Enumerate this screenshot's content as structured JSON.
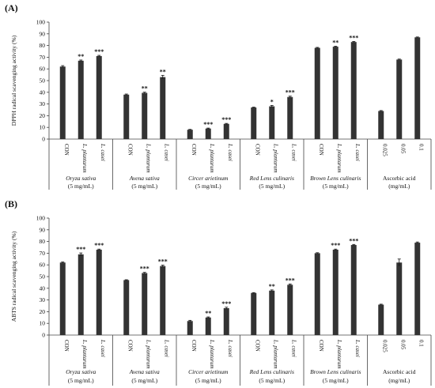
{
  "chart_data": [
    {
      "type": "bar",
      "panel": "(A)",
      "ylabel": "DPPH radical scavenging activity (%)",
      "ylim": [
        0,
        100
      ],
      "yticks": [
        0,
        10,
        20,
        30,
        40,
        50,
        60,
        70,
        80,
        90,
        100
      ],
      "groups": [
        {
          "name": "Oryza sativa",
          "sub": "(5 mg/mL)",
          "italic": true,
          "bars": [
            {
              "label": "CON",
              "italic": false,
              "value": 62,
              "err": 0.8,
              "sig": ""
            },
            {
              "label": "L. plantarum",
              "italic": true,
              "value": 67,
              "err": 0.6,
              "sig": "**"
            },
            {
              "label": "L. casei",
              "italic": true,
              "value": 71,
              "err": 0.6,
              "sig": "***"
            }
          ]
        },
        {
          "name": "Avena sativa",
          "sub": "(5 mg/mL)",
          "italic": true,
          "bars": [
            {
              "label": "CON",
              "italic": false,
              "value": 38,
              "err": 0.5,
              "sig": ""
            },
            {
              "label": "L. plantarum",
              "italic": true,
              "value": 39.5,
              "err": 0.6,
              "sig": "**"
            },
            {
              "label": "L. casei",
              "italic": true,
              "value": 53,
              "err": 1.5,
              "sig": "**"
            }
          ]
        },
        {
          "name": "Circer arietinum",
          "sub": "(5 mg/mL)",
          "italic": true,
          "bars": [
            {
              "label": "CON",
              "italic": false,
              "value": 8,
              "err": 0.3,
              "sig": ""
            },
            {
              "label": "L. plantarum",
              "italic": true,
              "value": 9,
              "err": 0.4,
              "sig": "***"
            },
            {
              "label": "L. casei",
              "italic": true,
              "value": 13,
              "err": 0.4,
              "sig": "***"
            }
          ]
        },
        {
          "name": "Red Lens culinaris",
          "sub": "(5 mg/mL)",
          "italic": true,
          "bars": [
            {
              "label": "CON",
              "italic": false,
              "value": 27,
              "err": 0.3,
              "sig": ""
            },
            {
              "label": "L. plantarum",
              "italic": true,
              "value": 28,
              "err": 0.8,
              "sig": "*"
            },
            {
              "label": "L. casei",
              "italic": true,
              "value": 36,
              "err": 0.7,
              "sig": "***"
            }
          ]
        },
        {
          "name": "Brown Lens culinaris",
          "sub": "(5 mg/mL)",
          "italic": true,
          "bars": [
            {
              "label": "CON",
              "italic": false,
              "value": 78,
              "err": 0.4,
              "sig": ""
            },
            {
              "label": "L. plantarum",
              "italic": true,
              "value": 79,
              "err": 0.4,
              "sig": "**"
            },
            {
              "label": "L. casei",
              "italic": true,
              "value": 83,
              "err": 0.5,
              "sig": "***"
            }
          ]
        },
        {
          "name": "Ascorbic acid",
          "sub": "(mg/mL)",
          "italic": false,
          "bars": [
            {
              "label": "0.025",
              "italic": false,
              "value": 24,
              "err": 0.4,
              "sig": ""
            },
            {
              "label": "0.05",
              "italic": false,
              "value": 68,
              "err": 0.4,
              "sig": ""
            },
            {
              "label": "0.1",
              "italic": false,
              "value": 87,
              "err": 0.3,
              "sig": ""
            }
          ]
        }
      ]
    },
    {
      "type": "bar",
      "panel": "(B)",
      "ylabel": "ABTS radical scavenging activity (%)",
      "ylim": [
        0,
        100
      ],
      "yticks": [
        0,
        10,
        20,
        30,
        40,
        50,
        60,
        70,
        80,
        90,
        100
      ],
      "groups": [
        {
          "name": "Oryza sativa",
          "sub": "(5 mg/mL)",
          "italic": true,
          "bars": [
            {
              "label": "CON",
              "italic": false,
              "value": 62,
              "err": 0.5,
              "sig": ""
            },
            {
              "label": "L. plantarum",
              "italic": true,
              "value": 69,
              "err": 1.2,
              "sig": "***"
            },
            {
              "label": "L. casei",
              "italic": true,
              "value": 73,
              "err": 0.5,
              "sig": "***"
            }
          ]
        },
        {
          "name": "Avena sativa",
          "sub": "(5 mg/mL)",
          "italic": true,
          "bars": [
            {
              "label": "CON",
              "italic": false,
              "value": 47,
              "err": 0.3,
              "sig": ""
            },
            {
              "label": "L. plantarum",
              "italic": true,
              "value": 53,
              "err": 0.6,
              "sig": "***"
            },
            {
              "label": "L. casei",
              "italic": true,
              "value": 59,
              "err": 0.8,
              "sig": "***"
            }
          ]
        },
        {
          "name": "Circer arietinum",
          "sub": "(5 mg/mL)",
          "italic": true,
          "bars": [
            {
              "label": "CON",
              "italic": false,
              "value": 12,
              "err": 0.6,
              "sig": ""
            },
            {
              "label": "L. plantarum",
              "italic": true,
              "value": 15,
              "err": 0.5,
              "sig": "**"
            },
            {
              "label": "L. casei",
              "italic": true,
              "value": 23,
              "err": 0.8,
              "sig": "***"
            }
          ]
        },
        {
          "name": "Red Lens culinaris",
          "sub": "(5 mg/mL)",
          "italic": true,
          "bars": [
            {
              "label": "CON",
              "italic": false,
              "value": 36,
              "err": 0.3,
              "sig": ""
            },
            {
              "label": "L. plantarum",
              "italic": true,
              "value": 38,
              "err": 0.6,
              "sig": "**"
            },
            {
              "label": "L. casei",
              "italic": true,
              "value": 43,
              "err": 0.7,
              "sig": "***"
            }
          ]
        },
        {
          "name": "Brown Lens culinaris",
          "sub": "(5 mg/mL)",
          "italic": true,
          "bars": [
            {
              "label": "CON",
              "italic": false,
              "value": 70,
              "err": 0.4,
              "sig": ""
            },
            {
              "label": "L. plantarum",
              "italic": true,
              "value": 73,
              "err": 0.5,
              "sig": "***"
            },
            {
              "label": "L. casei",
              "italic": true,
              "value": 77,
              "err": 0.5,
              "sig": "***"
            }
          ]
        },
        {
          "name": "Ascorbic acid",
          "sub": "(mg/mL)",
          "italic": false,
          "bars": [
            {
              "label": "0.025",
              "italic": false,
              "value": 26,
              "err": 0.4,
              "sig": ""
            },
            {
              "label": "0.05",
              "italic": false,
              "value": 62,
              "err": 3,
              "sig": ""
            },
            {
              "label": "0.1",
              "italic": false,
              "value": 79,
              "err": 0.6,
              "sig": ""
            }
          ]
        }
      ]
    }
  ]
}
